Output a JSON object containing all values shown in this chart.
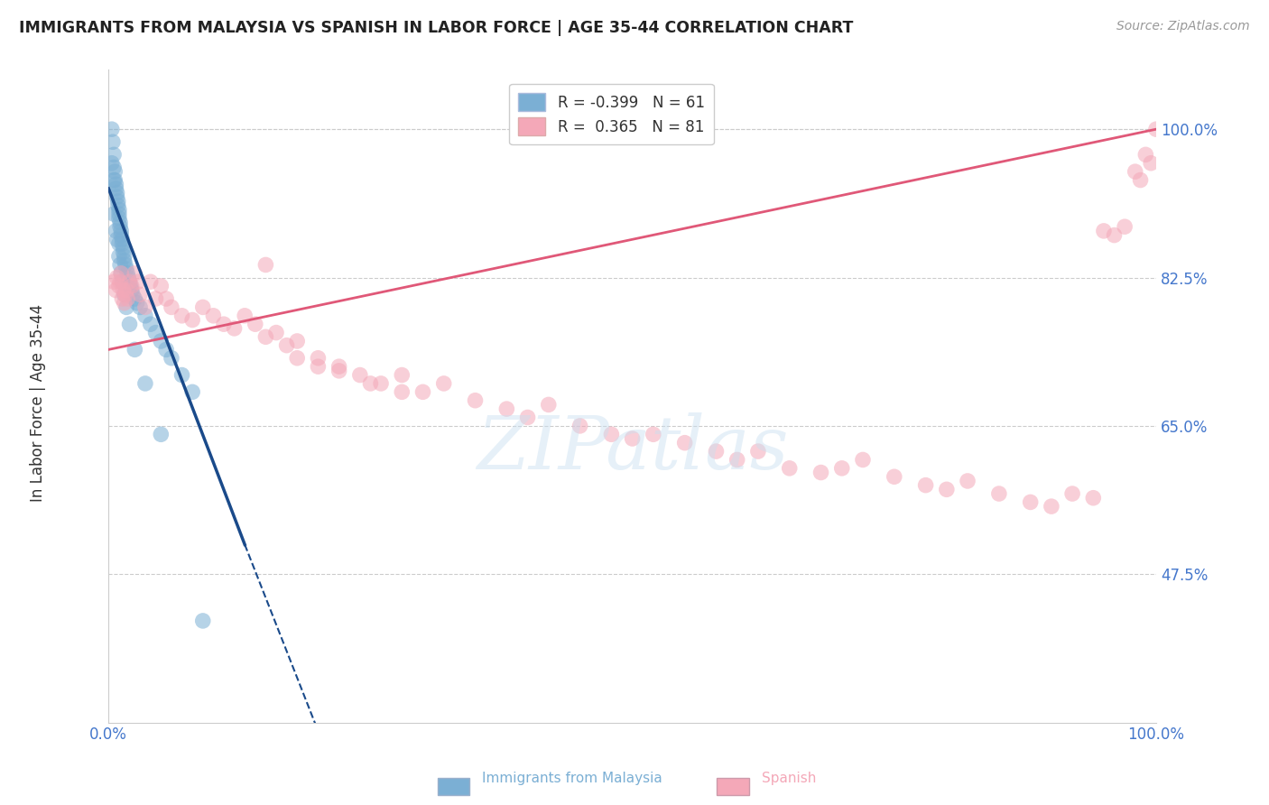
{
  "title": "IMMIGRANTS FROM MALAYSIA VS SPANISH IN LABOR FORCE | AGE 35-44 CORRELATION CHART",
  "source": "Source: ZipAtlas.com",
  "ylabel": "In Labor Force | Age 35-44",
  "xlim": [
    0.0,
    100.0
  ],
  "ylim": [
    30.0,
    107.0
  ],
  "yticks": [
    47.5,
    65.0,
    82.5,
    100.0
  ],
  "xticks": [
    0.0,
    100.0
  ],
  "blue_R": -0.399,
  "blue_N": 61,
  "pink_R": 0.365,
  "pink_N": 81,
  "blue_color": "#7bafd4",
  "pink_color": "#f4a8b8",
  "blue_line_color": "#1a4a8a",
  "pink_line_color": "#e05878",
  "grid_color": "#cccccc",
  "background_color": "#ffffff",
  "blue_line_x0": 0.0,
  "blue_line_y0": 93.0,
  "blue_line_x1": 13.0,
  "blue_line_y1": 51.0,
  "blue_dash_x0": 13.0,
  "blue_dash_y0": 51.0,
  "blue_dash_x1": 20.0,
  "blue_dash_y1": 29.0,
  "pink_line_x0": 0.0,
  "pink_line_y0": 74.0,
  "pink_line_x1": 100.0,
  "pink_line_y1": 100.0,
  "blue_dots_x": [
    0.3,
    0.4,
    0.5,
    0.5,
    0.6,
    0.6,
    0.7,
    0.7,
    0.8,
    0.8,
    0.9,
    0.9,
    1.0,
    1.0,
    1.0,
    1.1,
    1.1,
    1.2,
    1.2,
    1.3,
    1.3,
    1.4,
    1.4,
    1.5,
    1.5,
    1.6,
    1.7,
    1.8,
    1.9,
    2.0,
    2.1,
    2.2,
    2.3,
    2.5,
    2.7,
    3.0,
    3.5,
    4.0,
    4.5,
    5.0,
    5.5,
    6.0,
    7.0,
    8.0,
    0.3,
    0.5,
    0.5,
    0.7,
    0.8,
    1.0,
    1.0,
    1.1,
    1.2,
    1.3,
    1.5,
    1.7,
    2.0,
    2.5,
    3.5,
    5.0,
    9.0
  ],
  "blue_dots_y": [
    100.0,
    98.5,
    97.0,
    95.5,
    95.0,
    94.0,
    93.5,
    93.0,
    92.5,
    92.0,
    91.5,
    91.0,
    90.5,
    90.0,
    89.5,
    89.0,
    88.5,
    88.0,
    87.5,
    87.0,
    86.5,
    86.0,
    85.5,
    85.0,
    84.5,
    84.0,
    83.5,
    83.0,
    82.5,
    82.0,
    81.5,
    81.0,
    80.5,
    80.0,
    79.5,
    79.0,
    78.0,
    77.0,
    76.0,
    75.0,
    74.0,
    73.0,
    71.0,
    69.0,
    96.0,
    94.0,
    90.0,
    88.0,
    87.0,
    86.5,
    85.0,
    84.0,
    83.0,
    82.0,
    80.5,
    79.0,
    77.0,
    74.0,
    70.0,
    64.0,
    42.0
  ],
  "pink_dots_x": [
    0.5,
    0.7,
    0.8,
    1.0,
    1.1,
    1.2,
    1.3,
    1.4,
    1.5,
    1.6,
    1.7,
    1.8,
    2.0,
    2.2,
    2.5,
    2.8,
    3.0,
    3.5,
    4.0,
    4.5,
    5.0,
    5.5,
    6.0,
    7.0,
    8.0,
    9.0,
    10.0,
    11.0,
    12.0,
    13.0,
    14.0,
    15.0,
    16.0,
    17.0,
    18.0,
    20.0,
    22.0,
    24.0,
    26.0,
    28.0,
    30.0,
    32.0,
    35.0,
    38.0,
    40.0,
    42.0,
    45.0,
    48.0,
    50.0,
    52.0,
    55.0,
    58.0,
    60.0,
    62.0,
    65.0,
    68.0,
    70.0,
    72.0,
    75.0,
    78.0,
    80.0,
    82.0,
    85.0,
    88.0,
    90.0,
    92.0,
    94.0,
    95.0,
    96.0,
    97.0,
    98.0,
    98.5,
    99.0,
    99.5,
    100.0,
    15.0,
    18.0,
    20.0,
    22.0,
    25.0,
    28.0
  ],
  "pink_dots_y": [
    82.0,
    81.0,
    82.5,
    81.5,
    82.0,
    83.0,
    80.0,
    81.0,
    79.5,
    80.5,
    81.0,
    80.0,
    82.0,
    81.5,
    83.0,
    82.0,
    80.5,
    79.0,
    82.0,
    80.0,
    81.5,
    80.0,
    79.0,
    78.0,
    77.5,
    79.0,
    78.0,
    77.0,
    76.5,
    78.0,
    77.0,
    75.5,
    76.0,
    74.5,
    75.0,
    73.0,
    72.0,
    71.0,
    70.0,
    71.0,
    69.0,
    70.0,
    68.0,
    67.0,
    66.0,
    67.5,
    65.0,
    64.0,
    63.5,
    64.0,
    63.0,
    62.0,
    61.0,
    62.0,
    60.0,
    59.5,
    60.0,
    61.0,
    59.0,
    58.0,
    57.5,
    58.5,
    57.0,
    56.0,
    55.5,
    57.0,
    56.5,
    88.0,
    87.5,
    88.5,
    95.0,
    94.0,
    97.0,
    96.0,
    100.0,
    84.0,
    73.0,
    72.0,
    71.5,
    70.0,
    69.0
  ]
}
